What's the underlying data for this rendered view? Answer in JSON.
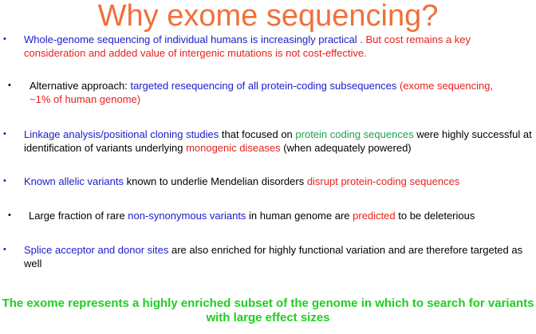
{
  "slide": {
    "title": "Why exome sequencing?",
    "bullet_char": "•",
    "colors": {
      "title": "#f0703a",
      "blue": "#1a1acc",
      "red": "#e8201c",
      "green": "#1fa050",
      "conclusion": "#22cc22"
    },
    "bullets": [
      {
        "segments": [
          {
            "text": "Whole-genome sequencing of individual humans is increasingly practical . ",
            "color": "blue"
          },
          {
            "text": "But cost remains a key consideration and added value of intergenic mutations is not cost-effective.",
            "color": "red"
          }
        ]
      },
      {
        "segments": [
          {
            "text": "Alternative approach: ",
            "color": "black"
          },
          {
            "text": "targeted resequencing of all protein-coding  subsequences ",
            "color": "blue"
          },
          {
            "text": "(exome sequencing, ~1% of human genome)",
            "color": "red"
          }
        ]
      },
      {
        "segments": [
          {
            "text": "Linkage analysis/positional cloning studies ",
            "color": "blue"
          },
          {
            "text": "that focused on ",
            "color": "black"
          },
          {
            "text": "protein coding sequences ",
            "color": "green"
          },
          {
            "text": "were highly successful at identification of variants underlying ",
            "color": "black"
          },
          {
            "text": "monogenic diseases ",
            "color": "red"
          },
          {
            "text": "(when adequately powered)",
            "color": "black"
          }
        ]
      },
      {
        "segments": [
          {
            "text": "Known allelic variants ",
            "color": "blue"
          },
          {
            "text": "known to underlie Mendelian disorders ",
            "color": "black"
          },
          {
            "text": "disrupt protein-coding sequences",
            "color": "red"
          }
        ]
      },
      {
        "segments": [
          {
            "text": "Large fraction of rare ",
            "color": "black"
          },
          {
            "text": "non-synonymous variants ",
            "color": "blue"
          },
          {
            "text": "in human genome are ",
            "color": "black"
          },
          {
            "text": "predicted ",
            "color": "red"
          },
          {
            "text": "to be deleterious",
            "color": "black"
          }
        ]
      },
      {
        "segments": [
          {
            "text": "Splice acceptor and donor sites ",
            "color": "blue"
          },
          {
            "text": "are also enriched for highly functional variation and are therefore targeted as well",
            "color": "black"
          }
        ]
      }
    ],
    "conclusion": "The exome represents a highly enriched subset of the genome in which to search for variants with large effect sizes"
  }
}
